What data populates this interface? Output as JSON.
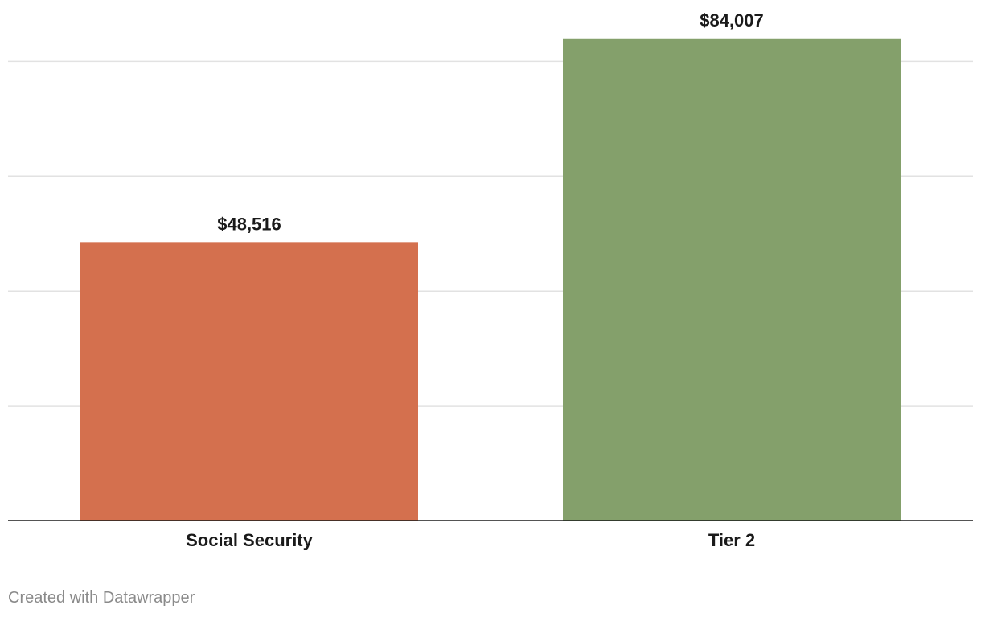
{
  "chart_data": {
    "type": "bar",
    "title": "",
    "xlabel": "",
    "ylabel": "",
    "categories": [
      "Social Security",
      "Tier 2"
    ],
    "values": [
      48516,
      84007
    ],
    "value_labels": [
      "$48,516",
      "$84,007"
    ],
    "colors": [
      "#d4704e",
      "#84a06b"
    ],
    "ylim": [
      0,
      90000
    ],
    "gridlines": [
      20000,
      40000,
      60000,
      80000
    ],
    "grid": true,
    "legend": "none"
  },
  "footer": {
    "credit": "Created with Datawrapper"
  }
}
